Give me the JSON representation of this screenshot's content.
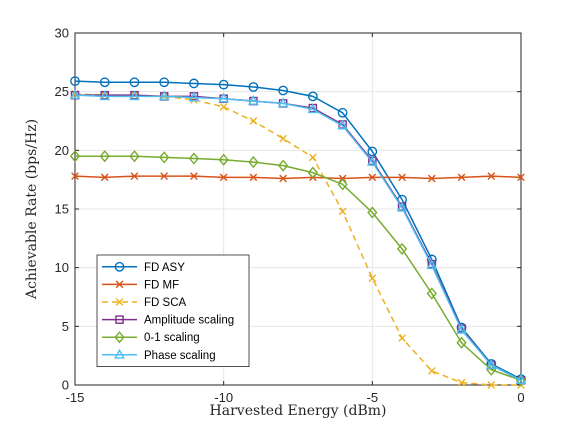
{
  "chart_data": {
    "type": "line",
    "xlabel": "Harvested Energy (dBm)",
    "ylabel": "Achievable Rate (bps/Hz)",
    "xlim": [
      -15,
      0
    ],
    "ylim": [
      0,
      30
    ],
    "x_ticks": [
      -15,
      -10,
      -5,
      0
    ],
    "y_ticks": [
      0,
      5,
      10,
      15,
      20,
      25,
      30
    ],
    "grid": true,
    "legend_position": "lower-left",
    "x": [
      -15,
      -14,
      -13,
      -12,
      -11,
      -10,
      -9,
      -8,
      -7,
      -6,
      -5,
      -4,
      -3,
      -2,
      -1,
      0
    ],
    "series": [
      {
        "name": "FD ASY",
        "color": "#0072BD",
        "marker": "circle",
        "dash": "solid",
        "values": [
          25.9,
          25.8,
          25.8,
          25.8,
          25.7,
          25.6,
          25.4,
          25.1,
          24.6,
          23.2,
          19.9,
          15.8,
          10.7,
          4.9,
          1.8,
          0.5
        ]
      },
      {
        "name": "FD MF",
        "color": "#D95319",
        "marker": "x",
        "dash": "solid",
        "values": [
          17.8,
          17.7,
          17.8,
          17.8,
          17.8,
          17.7,
          17.7,
          17.6,
          17.7,
          17.6,
          17.7,
          17.7,
          17.6,
          17.7,
          17.8,
          17.7
        ]
      },
      {
        "name": "FD SCA",
        "color": "#EDB120",
        "marker": "x",
        "dash": "dashed",
        "values": [
          24.8,
          24.7,
          24.7,
          24.6,
          24.3,
          23.7,
          22.5,
          21.0,
          19.4,
          14.8,
          9.1,
          4.0,
          1.2,
          0.2,
          0.0,
          0.0
        ]
      },
      {
        "name": "Amplitude scaling",
        "color": "#7E2F8E",
        "marker": "square",
        "dash": "solid",
        "values": [
          24.7,
          24.7,
          24.7,
          24.6,
          24.6,
          24.4,
          24.2,
          24.0,
          23.6,
          22.2,
          19.1,
          15.2,
          10.3,
          4.8,
          1.7,
          0.4
        ]
      },
      {
        "name": "0-1 scaling",
        "color": "#77AC30",
        "marker": "diamond",
        "dash": "solid",
        "values": [
          19.5,
          19.5,
          19.5,
          19.4,
          19.3,
          19.2,
          19.0,
          18.7,
          18.1,
          17.1,
          14.7,
          11.6,
          7.8,
          3.6,
          1.3,
          0.4
        ]
      },
      {
        "name": "Phase scaling",
        "color": "#4DBEEE",
        "marker": "triangle",
        "dash": "solid",
        "values": [
          24.7,
          24.6,
          24.6,
          24.6,
          24.5,
          24.4,
          24.2,
          24.0,
          23.5,
          22.1,
          19.0,
          15.1,
          10.2,
          4.7,
          1.7,
          0.4
        ]
      }
    ]
  }
}
